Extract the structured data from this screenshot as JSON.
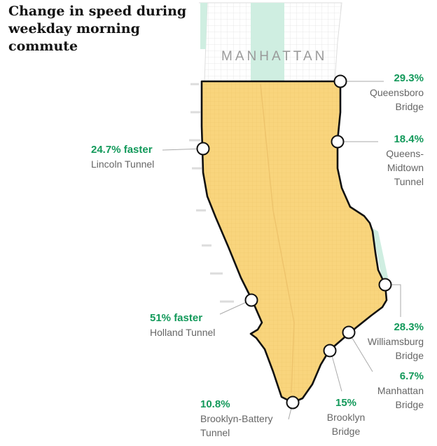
{
  "title": "Change in speed during weekday morning commute",
  "region_label": "MANHATTAN",
  "colors": {
    "zone_fill": "#f9d57d",
    "zone_stroke": "#111111",
    "park": "#cfeee1",
    "accent": "#12995a",
    "label": "#666666"
  },
  "crossings": [
    {
      "id": "queensboro",
      "value": "29.3%",
      "name": [
        "Queensboro",
        "Bridge"
      ]
    },
    {
      "id": "queens-midtown",
      "value": "18.4%",
      "name": [
        "Queens-",
        "Midtown",
        "Tunnel"
      ]
    },
    {
      "id": "lincoln",
      "value": "24.7% faster",
      "name": [
        "Lincoln Tunnel"
      ]
    },
    {
      "id": "holland",
      "value": "51% faster",
      "name": [
        "Holland Tunnel"
      ]
    },
    {
      "id": "williamsburg",
      "value": "28.3%",
      "name": [
        "Williamsburg",
        "Bridge"
      ]
    },
    {
      "id": "manhattan",
      "value": "6.7%",
      "name": [
        "Manhattan",
        "Bridge"
      ]
    },
    {
      "id": "brooklyn",
      "value": "15%",
      "name": [
        "Brooklyn",
        "Bridge"
      ]
    },
    {
      "id": "brooklyn-battery",
      "value": "10.8%",
      "name": [
        "Brooklyn-Battery",
        "Tunnel"
      ]
    }
  ]
}
